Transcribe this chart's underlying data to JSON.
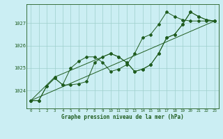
{
  "title": "Graphe pression niveau de la mer (hPa)",
  "bg_color": "#cbeef3",
  "grid_color": "#9ecfcc",
  "line_color": "#1f5c1f",
  "xlim": [
    -0.5,
    23.5
  ],
  "ylim": [
    1023.2,
    1027.85
  ],
  "yticks": [
    1024,
    1025,
    1026,
    1027
  ],
  "xticks": [
    0,
    1,
    2,
    3,
    4,
    5,
    6,
    7,
    8,
    9,
    10,
    11,
    12,
    13,
    14,
    15,
    16,
    17,
    18,
    19,
    20,
    21,
    22,
    23
  ],
  "line1_x": [
    0,
    1,
    2,
    3,
    4,
    5,
    6,
    7,
    8,
    9,
    10,
    11,
    12,
    13,
    14,
    15,
    16,
    17,
    18,
    19,
    20,
    21,
    22,
    23
  ],
  "line1_y": [
    1023.55,
    1023.55,
    1024.2,
    1024.55,
    1024.25,
    1024.25,
    1024.3,
    1024.4,
    1025.25,
    1025.5,
    1025.65,
    1025.5,
    1025.25,
    1024.85,
    1024.95,
    1025.15,
    1025.65,
    1026.35,
    1026.5,
    1026.95,
    1027.5,
    1027.3,
    1027.15,
    1027.1
  ],
  "line2_x": [
    0,
    1,
    2,
    3,
    4,
    5,
    6,
    7,
    8,
    9,
    10,
    11,
    12,
    13,
    14,
    15,
    16,
    17,
    18,
    19,
    20,
    21,
    22,
    23
  ],
  "line2_y": [
    1023.55,
    1023.55,
    1024.2,
    1024.55,
    1024.25,
    1025.0,
    1025.3,
    1025.5,
    1025.5,
    1025.25,
    1024.85,
    1024.95,
    1025.15,
    1025.65,
    1026.35,
    1026.5,
    1026.95,
    1027.5,
    1027.3,
    1027.15,
    1027.1,
    1027.1,
    1027.1,
    1027.1
  ],
  "line3_x": [
    0,
    3,
    10,
    11,
    12,
    13,
    14,
    15,
    16,
    17,
    18,
    19,
    20,
    21,
    22,
    23
  ],
  "line3_y": [
    1023.55,
    1024.6,
    1025.65,
    1025.5,
    1025.25,
    1024.85,
    1024.95,
    1025.15,
    1025.65,
    1026.35,
    1026.5,
    1026.95,
    1027.5,
    1027.3,
    1027.15,
    1027.1
  ],
  "line4_x": [
    0,
    23
  ],
  "line4_y": [
    1023.55,
    1027.1
  ]
}
